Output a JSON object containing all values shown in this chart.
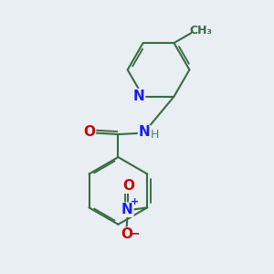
{
  "background_color": "#e8eef2",
  "bond_color": "#3a6b45",
  "bond_width": 1.5,
  "atom_colors": {
    "N": "#1a1aff",
    "O": "#cc0000",
    "C": "#3a6b45",
    "H": "#448866",
    "CH3": "#3a6b45"
  },
  "font_size_atom": 10,
  "N_label_color": "#1a1aff",
  "O_label_color": "#cc0000",
  "H_label_color": "#448866"
}
